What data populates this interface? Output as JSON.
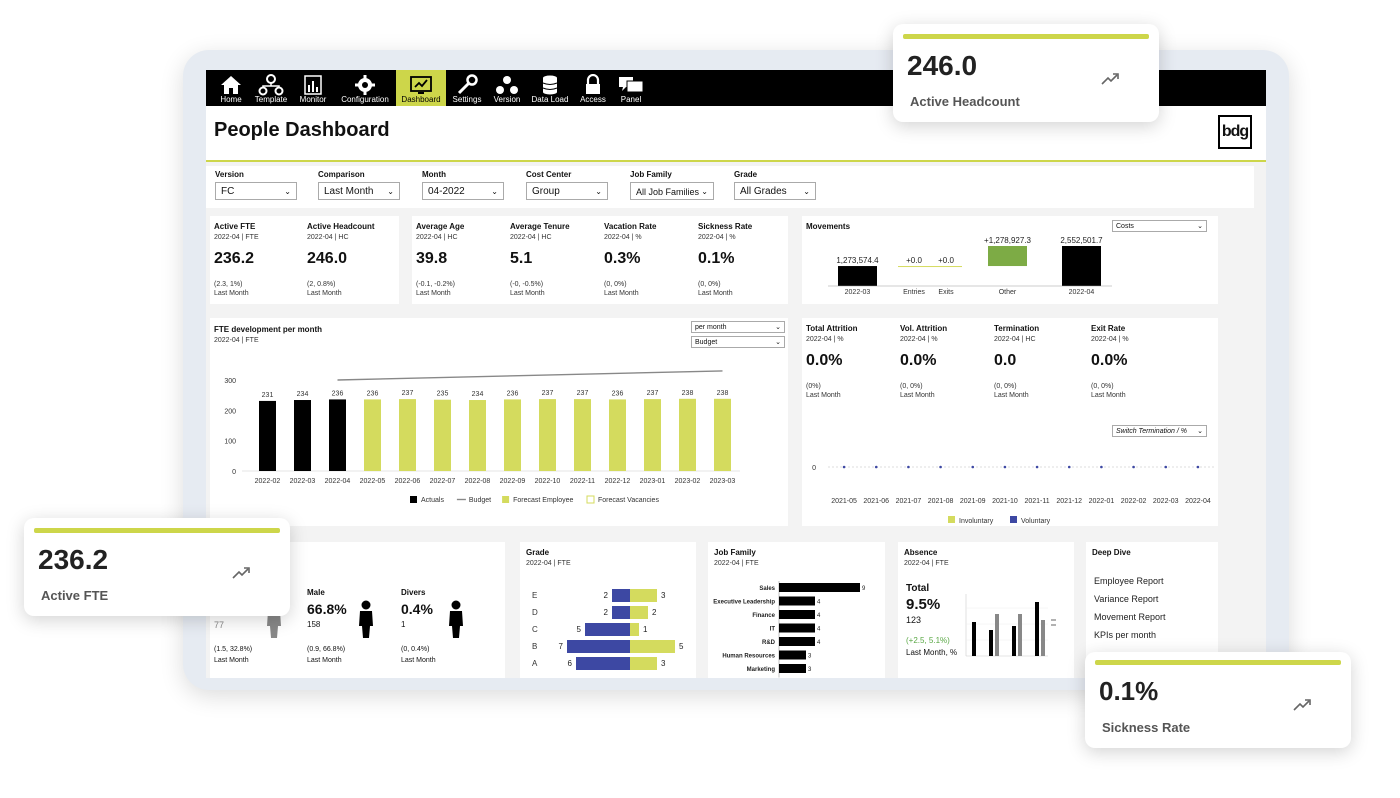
{
  "nav": [
    {
      "label": "Home",
      "icon": "home-icon"
    },
    {
      "label": "Template",
      "icon": "template-icon"
    },
    {
      "label": "Monitor",
      "icon": "monitor-icon"
    },
    {
      "label": "Configuration",
      "icon": "gear-icon"
    },
    {
      "label": "Dashboard",
      "icon": "dashboard-icon",
      "active": true
    },
    {
      "label": "Settings",
      "icon": "wrench-icon"
    },
    {
      "label": "Version",
      "icon": "version-icon"
    },
    {
      "label": "Data Load",
      "icon": "database-icon"
    },
    {
      "label": "Access",
      "icon": "lock-icon"
    },
    {
      "label": "Panel",
      "icon": "chat-icon"
    }
  ],
  "page": {
    "title": "People Dashboard",
    "logo": "bdg"
  },
  "filters": [
    {
      "label": "Version",
      "value": "FC"
    },
    {
      "label": "Comparison",
      "value": "Last Month"
    },
    {
      "label": "Month",
      "value": "04-2022"
    },
    {
      "label": "Cost Center",
      "value": "Group"
    },
    {
      "label": "Job Family",
      "value": "All Job Families"
    },
    {
      "label": "Grade",
      "value": "All Grades"
    }
  ],
  "kpis_top": [
    {
      "title": "Active FTE",
      "sub": "2022-04 | FTE",
      "value": "236.2",
      "delta": "(2.3, 1%)",
      "cmp": "Last Month"
    },
    {
      "title": "Active Headcount",
      "sub": "2022-04 | HC",
      "value": "246.0",
      "delta": "(2, 0.8%)",
      "cmp": "Last Month"
    },
    {
      "title": "Average Age",
      "sub": "2022-04 | HC",
      "value": "39.8",
      "delta": "(-0.1, -0.2%)",
      "cmp": "Last Month"
    },
    {
      "title": "Average Tenure",
      "sub": "2022-04 | HC",
      "value": "5.1",
      "delta": "(-0, -0.5%)",
      "cmp": "Last Month"
    },
    {
      "title": "Vacation Rate",
      "sub": "2022-04 | %",
      "value": "0.3%",
      "delta": "(0, 0%)",
      "cmp": "Last Month"
    },
    {
      "title": "Sickness Rate",
      "sub": "2022-04 | %",
      "value": "0.1%",
      "delta": "(0, 0%)",
      "cmp": "Last Month"
    }
  ],
  "movements": {
    "title": "Movements",
    "select": "Costs",
    "bars": [
      {
        "label": "2022-03",
        "value": 1273574.4,
        "text": "1,273,574.4"
      },
      {
        "label": "Entries",
        "value": 0,
        "text": "+0.0"
      },
      {
        "label": "Exits",
        "value": 0,
        "text": "+0.0"
      },
      {
        "label": "Other",
        "value": 1278927.3,
        "text": "+1,278,927.3"
      },
      {
        "label": "2022-04",
        "value": 2552501.7,
        "text": "2,552,501.7"
      }
    ]
  },
  "fte_chart": {
    "title": "FTE development per month",
    "sub": "2022-04 | FTE",
    "select1": "per month",
    "select2": "Budget",
    "categories": [
      "2022-02",
      "2022-03",
      "2022-04",
      "2022-05",
      "2022-06",
      "2022-07",
      "2022-08",
      "2022-09",
      "2022-10",
      "2022-11",
      "2022-12",
      "2023-01",
      "2023-02",
      "2023-03"
    ],
    "values": [
      231,
      234,
      236,
      236,
      237,
      235,
      234,
      236,
      237,
      237,
      236,
      237,
      238,
      238
    ],
    "kind": [
      "actual",
      "actual",
      "actual",
      "forecast",
      "forecast",
      "forecast",
      "forecast",
      "forecast",
      "forecast",
      "forecast",
      "forecast",
      "forecast",
      "forecast",
      "forecast"
    ],
    "budget_start": 300,
    "budget_end": 330,
    "yticks": [
      "0",
      "100",
      "200",
      "300"
    ],
    "legend": [
      "Actuals",
      "Budget",
      "Forecast Employee",
      "Forecast Vacancies"
    ]
  },
  "attrition": {
    "kpis": [
      {
        "title": "Total Attrition",
        "sub": "2022-04 | %",
        "value": "0.0%",
        "delta": "(0%)",
        "cmp": "Last Month"
      },
      {
        "title": "Vol. Attrition",
        "sub": "2022-04 | %",
        "value": "0.0%",
        "delta": "(0, 0%)",
        "cmp": "Last Month"
      },
      {
        "title": "Termination",
        "sub": "2022-04 | HC",
        "value": "0.0",
        "delta": "(0, 0%)",
        "cmp": "Last Month"
      },
      {
        "title": "Exit Rate",
        "sub": "2022-04 | %",
        "value": "0.0%",
        "delta": "(0, 0%)",
        "cmp": "Last Month"
      }
    ],
    "select": "Switch Termination / %",
    "zero_label": "0",
    "months": [
      "2021-05",
      "2021-06",
      "2021-07",
      "2021-08",
      "2021-09",
      "2021-10",
      "2021-11",
      "2021-12",
      "2022-01",
      "2022-02",
      "2022-03",
      "2022-04"
    ],
    "values": [
      0,
      0,
      0,
      0,
      0,
      0,
      0,
      0,
      0,
      0,
      0,
      0
    ],
    "legend": [
      "Involuntary",
      "Voluntary"
    ]
  },
  "gender": {
    "female_count": "77",
    "female_delta": "(1.5, 32.8%)",
    "female_cmp": "Last Month",
    "male_label": "Male",
    "male_pct": "66.8%",
    "male_count": "158",
    "male_delta": "(0.9, 66.8%)",
    "male_cmp": "Last Month",
    "divers_label": "Divers",
    "divers_pct": "0.4%",
    "divers_count": "1",
    "divers_delta": "(0, 0.4%)",
    "divers_cmp": "Last Month"
  },
  "grade": {
    "title": "Grade",
    "sub": "2022-04 | FTE",
    "rows": [
      {
        "label": "E",
        "left": 2,
        "right": 3
      },
      {
        "label": "D",
        "left": 2,
        "right": 2
      },
      {
        "label": "C",
        "left": 5,
        "right": 1
      },
      {
        "label": "B",
        "left": 7,
        "right": 5
      },
      {
        "label": "A",
        "left": 6,
        "right": 3
      }
    ]
  },
  "job_family": {
    "title": "Job Family",
    "sub": "2022-04 | FTE",
    "rows": [
      {
        "label": "Sales",
        "value": 9
      },
      {
        "label": "Executive Leadership",
        "value": 4
      },
      {
        "label": "Finance",
        "value": 4
      },
      {
        "label": "IT",
        "value": 4
      },
      {
        "label": "R&D",
        "value": 4
      },
      {
        "label": "Human Resources",
        "value": 3
      },
      {
        "label": "Marketing",
        "value": 3
      }
    ]
  },
  "absence": {
    "title": "Absence",
    "sub": "2022-04 | FTE",
    "total_label": "Total",
    "total_pct": "9.5%",
    "total_count": "123",
    "delta": "(+2.5, 5.1%)",
    "cmp": "Last Month, %"
  },
  "deep_dive": {
    "title": "Deep Dive",
    "links": [
      "Employee Report",
      "Variance Report",
      "Movement Report",
      "KPIs per month"
    ]
  },
  "floating": [
    {
      "value": "246.0",
      "label": "Active Headcount"
    },
    {
      "value": "236.2",
      "label": "Active FTE"
    },
    {
      "value": "0.1%",
      "label": "Sickness Rate"
    }
  ],
  "colors": {
    "accent": "#cdd64a",
    "actual": "#000000",
    "forecast": "#d4db5e",
    "voluntary": "#3d48a3",
    "other": "#7dab45"
  }
}
